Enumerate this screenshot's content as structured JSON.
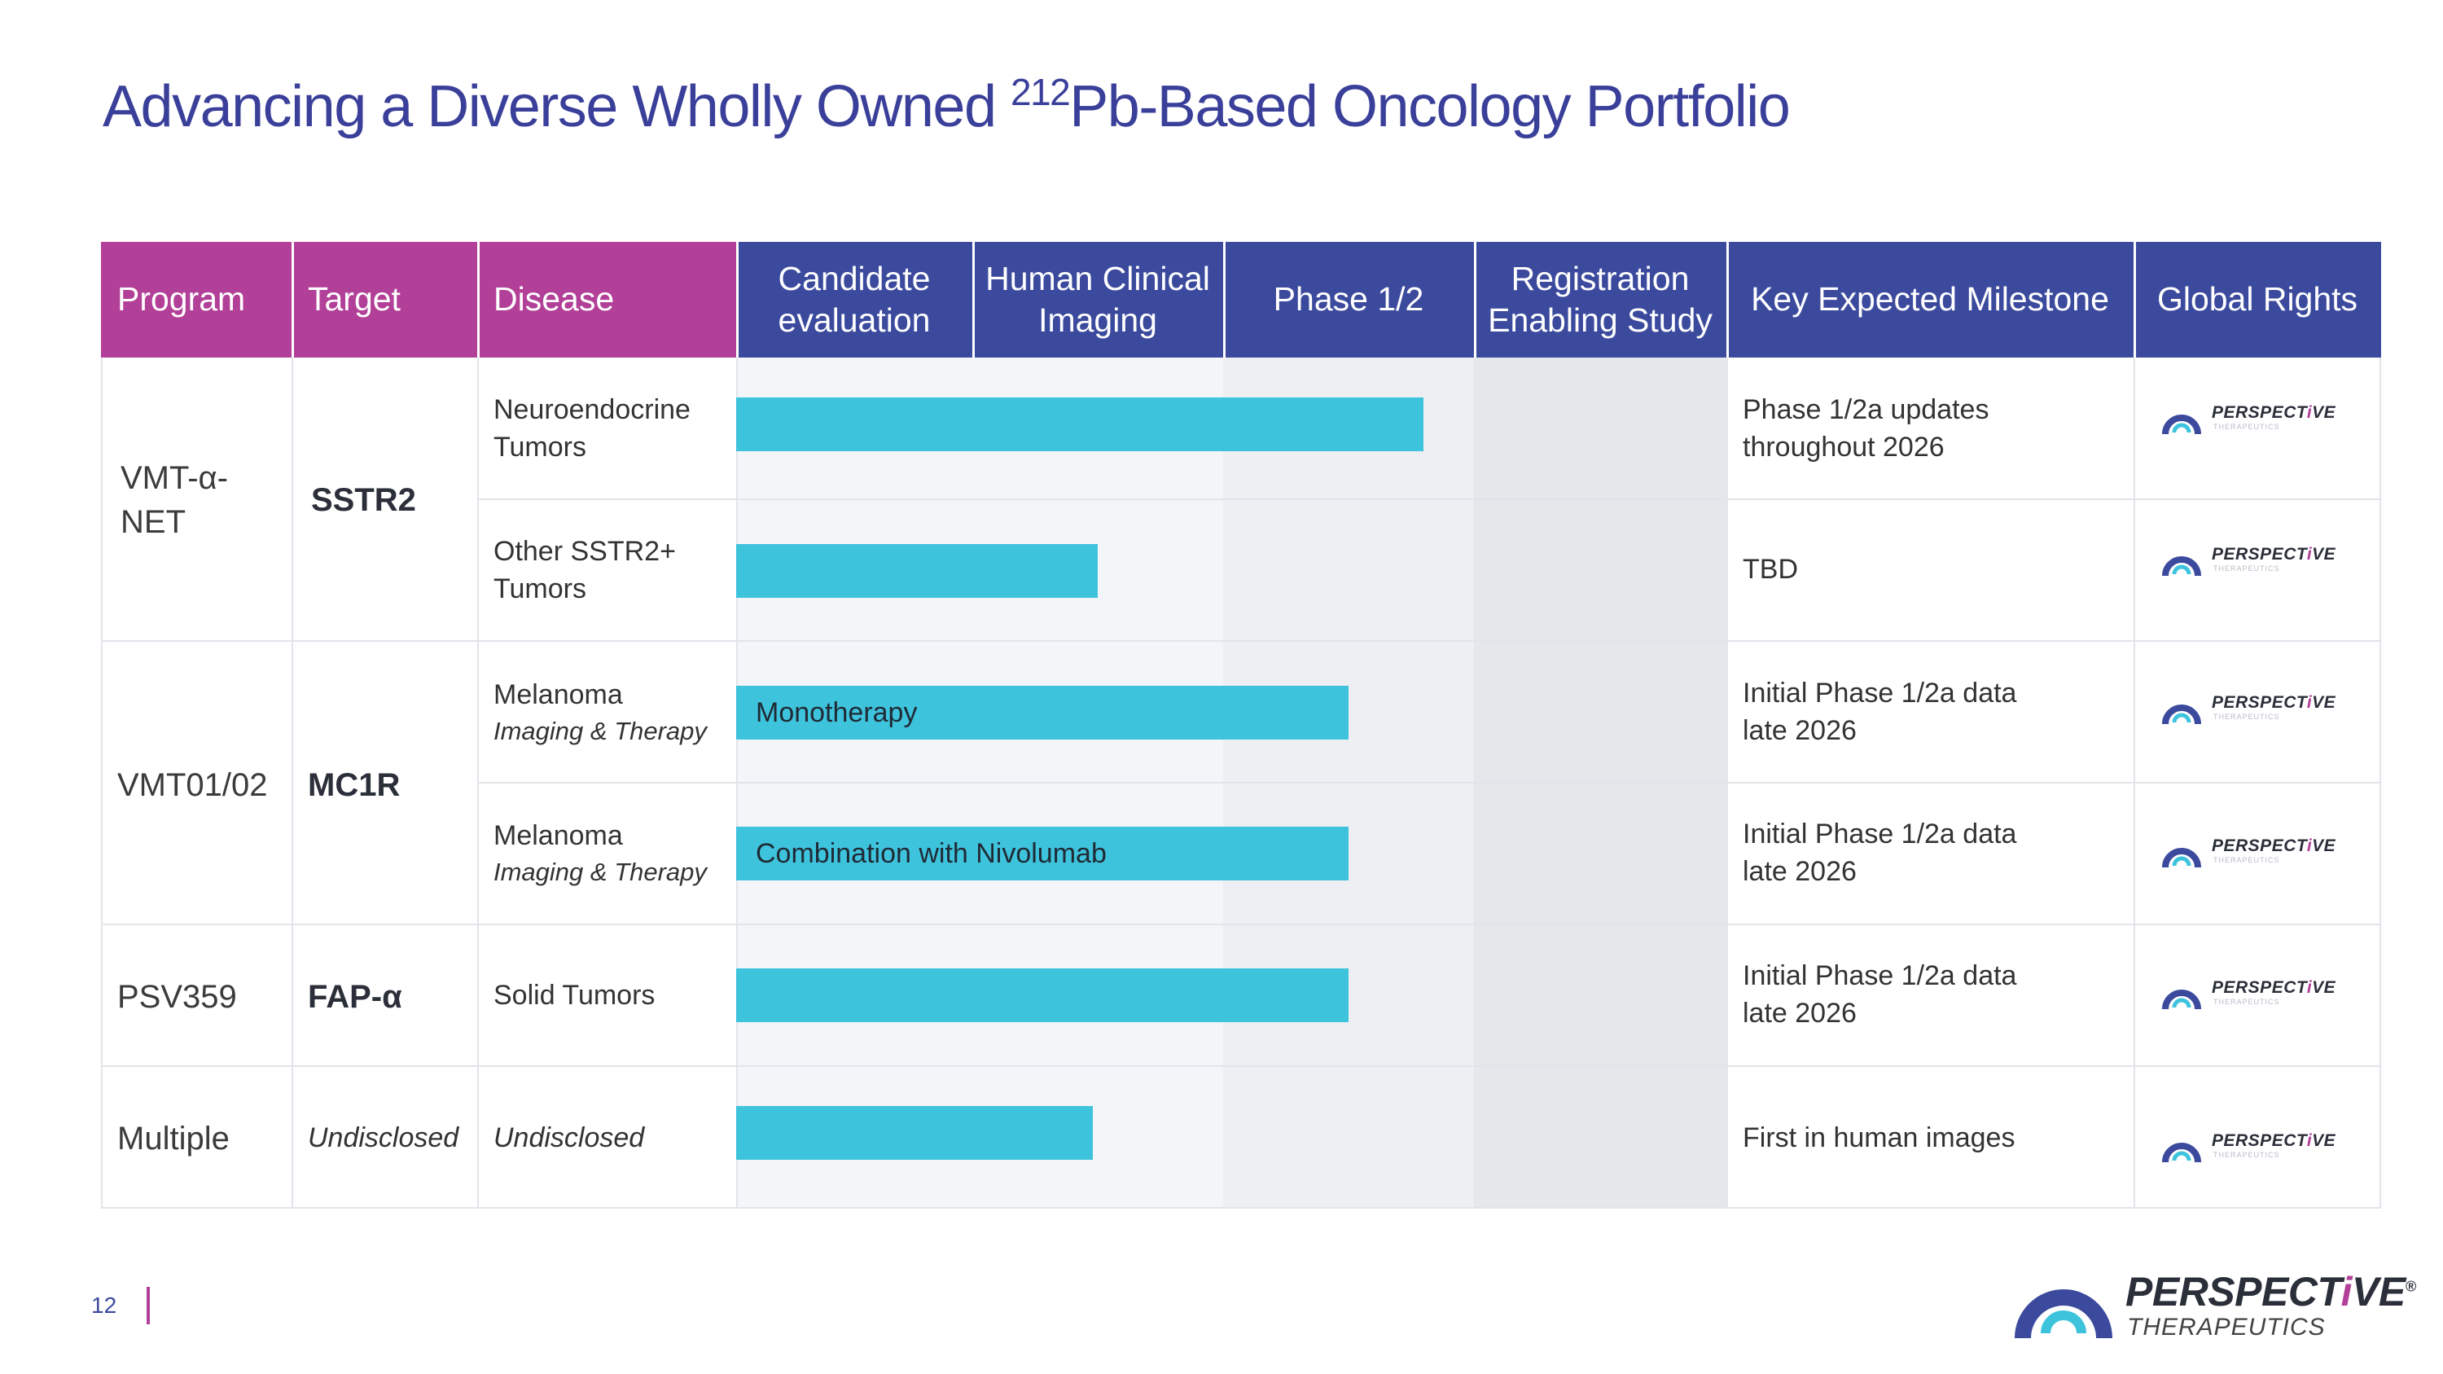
{
  "title": {
    "prefix": "Advancing a Diverse Wholly Owned ",
    "superscript": "212",
    "suffix": "Pb-Based Oncology Portfolio"
  },
  "headers": {
    "program": "Program",
    "target": "Target",
    "disease": "Disease",
    "candidate_evaluation": "Candidate evaluation",
    "human_clinical_imaging": "Human Clinical Imaging",
    "phase": "Phase 1/2",
    "registration": "Registration Enabling Study",
    "milestone": "Key Expected Milestone",
    "rights": "Global Rights"
  },
  "colors": {
    "header_left": "#b23f98",
    "header_right": "#3c4a9e",
    "bar": "#3ec3dc",
    "band_light": "#f4f5f8",
    "band_dark": "#e6e7eb"
  },
  "programs": [
    {
      "program": "VMT-α-NET",
      "target": "SSTR2"
    },
    {
      "program": "VMT01/02",
      "target": "MC1R"
    },
    {
      "program": "PSV359",
      "target": "FAP-α"
    },
    {
      "program": "Multiple",
      "target": "Undisclosed"
    }
  ],
  "rows": [
    {
      "disease": "Neuroendocrine Tumors",
      "disease_sub": "",
      "bar_label": "",
      "bar_stage_progress": 2.8,
      "milestone": "Phase 1/2a updates throughout 2026"
    },
    {
      "disease": "Other SSTR2+ Tumors",
      "disease_sub": "",
      "bar_label": "",
      "bar_stage_progress": 1.5,
      "milestone": "TBD"
    },
    {
      "disease": "Melanoma",
      "disease_sub": "Imaging & Therapy",
      "bar_label": "Monotherapy",
      "bar_stage_progress": 2.5,
      "milestone": "Initial Phase 1/2a data late 2026"
    },
    {
      "disease": "Melanoma",
      "disease_sub": "Imaging & Therapy",
      "bar_label": "Combination with Nivolumab",
      "bar_stage_progress": 2.5,
      "milestone": "Initial Phase 1/2a data late 2026"
    },
    {
      "disease": "Solid Tumors",
      "disease_sub": "",
      "bar_label": "",
      "bar_stage_progress": 2.5,
      "milestone": "Initial Phase 1/2a data late 2026"
    },
    {
      "disease": "Undisclosed",
      "disease_sub": "",
      "bar_label": "",
      "bar_stage_progress": 1.48,
      "milestone": "First in human images"
    }
  ],
  "rights_logo": {
    "wordmark_a": "PERSPECT",
    "wordmark_i": "i",
    "wordmark_b": "VE",
    "sub": "THERAPEUTICS"
  },
  "footer": {
    "page_number": "12",
    "brand_a": "PERSPECT",
    "brand_i": "i",
    "brand_b": "VE",
    "brand_reg": "®",
    "brand_sub": "THERAPEUTICS"
  }
}
